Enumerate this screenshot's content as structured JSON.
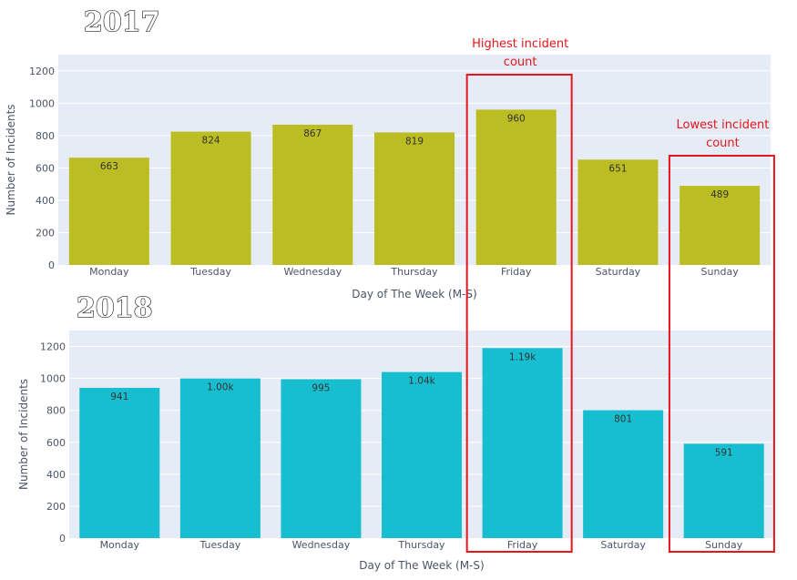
{
  "chart_data": [
    {
      "type": "bar",
      "title": "2017",
      "xlabel": "Day of The Week (M-S)",
      "ylabel": "Number of Incidents",
      "categories": [
        "Monday",
        "Tuesday",
        "Wednesday",
        "Thursday",
        "Friday",
        "Saturday",
        "Sunday"
      ],
      "values": [
        663,
        824,
        867,
        819,
        960,
        651,
        489
      ],
      "data_labels": [
        "663",
        "824",
        "867",
        "819",
        "960",
        "651",
        "489"
      ],
      "ylim": [
        0,
        1300
      ],
      "yticks": [
        0,
        200,
        400,
        600,
        800,
        1000,
        1200
      ],
      "bar_color": "#bcbd22",
      "plot_bg": "#e5ecf6",
      "grid": true
    },
    {
      "type": "bar",
      "title": "2018",
      "xlabel": "Day of The Week (M-S)",
      "ylabel": "Number of Incidents",
      "categories": [
        "Monday",
        "Tuesday",
        "Wednesday",
        "Thursday",
        "Friday",
        "Saturday",
        "Sunday"
      ],
      "values": [
        941,
        1000,
        995,
        1040,
        1190,
        801,
        591
      ],
      "data_labels": [
        "941",
        "1.00k",
        "995",
        "1.04k",
        "1.19k",
        "801",
        "591"
      ],
      "ylim": [
        0,
        1300
      ],
      "yticks": [
        0,
        200,
        400,
        600,
        800,
        1000,
        1200
      ],
      "bar_color": "#17becf",
      "plot_bg": "#e5ecf6",
      "grid": true
    }
  ],
  "annotations": {
    "highest": {
      "lines": [
        "Highest incident",
        "count"
      ],
      "category": "Friday"
    },
    "lowest": {
      "lines": [
        "Lowest incident",
        "count"
      ],
      "category": "Sunday"
    },
    "color": "#e8141c"
  }
}
